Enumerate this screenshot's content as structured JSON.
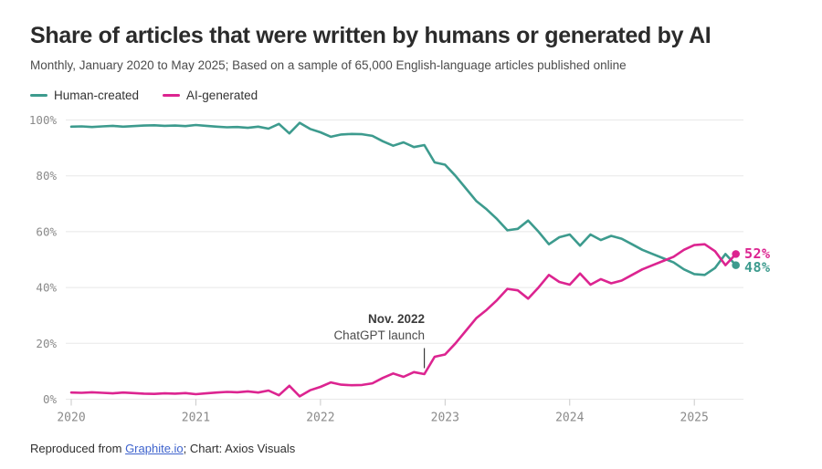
{
  "header": {
    "title": "Share of articles that were written by humans or generated by AI",
    "subtitle": "Monthly, January 2020 to May 2025; Based on a sample of 65,000 English-language articles published online"
  },
  "legend": {
    "human": "Human-created",
    "ai": "AI-generated"
  },
  "colors": {
    "human": "#3d9b8e",
    "ai": "#dc2490",
    "grid": "#e8e8e8",
    "tick_mark": "#c9c9c9",
    "annotation_line": "#3a3a3a",
    "link": "#3e63cd"
  },
  "chart_data": {
    "type": "line",
    "title": "Share of articles that were written by humans or generated by AI",
    "x_unit": "month",
    "x_start": "2020-01",
    "x_end": "2025-05",
    "n_points": 65,
    "ylim": [
      0,
      100
    ],
    "grid": "horizontal",
    "legend_position": "top-left",
    "yticks": [
      {
        "label": "0%",
        "value": 0
      },
      {
        "label": "20%",
        "value": 20
      },
      {
        "label": "40%",
        "value": 40
      },
      {
        "label": "60%",
        "value": 60
      },
      {
        "label": "80%",
        "value": 80
      },
      {
        "label": "100%",
        "value": 100
      }
    ],
    "xticks": [
      {
        "label": "2020",
        "month_index": 0
      },
      {
        "label": "2021",
        "month_index": 12
      },
      {
        "label": "2022",
        "month_index": 24
      },
      {
        "label": "2023",
        "month_index": 36
      },
      {
        "label": "2024",
        "month_index": 48
      },
      {
        "label": "2025",
        "month_index": 60
      }
    ],
    "series": [
      {
        "name": "Human-created",
        "color_key": "human",
        "values": [
          97.6,
          97.7,
          97.5,
          97.7,
          97.9,
          97.6,
          97.8,
          98.0,
          98.1,
          97.9,
          98.0,
          97.8,
          98.2,
          97.9,
          97.6,
          97.4,
          97.5,
          97.2,
          97.6,
          96.9,
          98.6,
          95.2,
          99.0,
          96.8,
          95.6,
          94.0,
          94.8,
          95.0,
          94.9,
          94.3,
          92.4,
          90.8,
          92.0,
          90.3,
          91.0,
          84.8,
          84.0,
          80.0,
          75.5,
          71.0,
          68.0,
          64.5,
          60.5,
          61.0,
          64.0,
          60.0,
          55.5,
          58.0,
          59.0,
          55.0,
          59.0,
          57.0,
          58.5,
          57.5,
          55.5,
          53.5,
          52.0,
          50.5,
          49.0,
          46.5,
          44.8,
          44.5,
          47.0,
          52.0,
          48.0
        ]
      },
      {
        "name": "AI-generated",
        "color_key": "ai",
        "values": [
          2.4,
          2.3,
          2.5,
          2.3,
          2.1,
          2.4,
          2.2,
          2.0,
          1.9,
          2.1,
          2.0,
          2.2,
          1.8,
          2.1,
          2.4,
          2.6,
          2.5,
          2.8,
          2.4,
          3.1,
          1.4,
          4.8,
          1.0,
          3.2,
          4.4,
          6.0,
          5.2,
          5.0,
          5.1,
          5.7,
          7.6,
          9.2,
          8.0,
          9.7,
          9.0,
          15.2,
          16.0,
          20.0,
          24.5,
          29.0,
          32.0,
          35.5,
          39.5,
          39.0,
          36.0,
          40.0,
          44.5,
          42.0,
          41.0,
          45.0,
          41.0,
          43.0,
          41.5,
          42.5,
          44.5,
          46.5,
          48.0,
          49.5,
          51.0,
          53.5,
          55.2,
          55.5,
          53.0,
          48.0,
          52.0
        ]
      }
    ],
    "end_labels": {
      "ai": "52%",
      "human": "48%"
    },
    "annotation": {
      "line1": "Nov. 2022",
      "line2": "ChatGPT launch",
      "month_index": 34
    }
  },
  "footer": {
    "prefix": "Reproduced from ",
    "link_text": "Graphite.io",
    "suffix": "; Chart: Axios Visuals"
  }
}
